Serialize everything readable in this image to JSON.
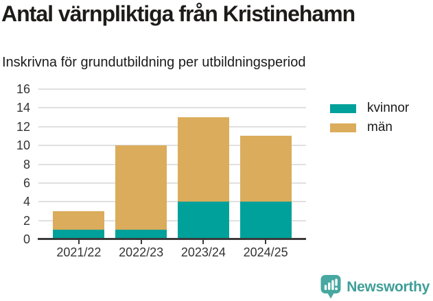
{
  "header": {
    "title": "Antal värnpliktiga från Kristinehamn",
    "subtitle": "Inskrivna för grundutbildning per utbildningsperiod"
  },
  "chart_data": {
    "type": "bar",
    "stacked": true,
    "title": "Antal värnpliktiga från Kristinehamn",
    "subtitle": "Inskrivna för grundutbildning per utbildningsperiod",
    "categories": [
      "2021/22",
      "2022/23",
      "2023/24",
      "2024/25"
    ],
    "series": [
      {
        "name": "kvinnor",
        "color": "#00a19a",
        "values": [
          1,
          1,
          4,
          4
        ]
      },
      {
        "name": "män",
        "color": "#dbac5b",
        "values": [
          2,
          9,
          9,
          7
        ]
      }
    ],
    "totals": [
      3,
      10,
      13,
      11
    ],
    "xlabel": "",
    "ylabel": "",
    "ylim": [
      0,
      16
    ],
    "ytick_step": 2,
    "yticks": [
      0,
      2,
      4,
      6,
      8,
      10,
      12,
      14,
      16
    ],
    "grid": "horizontal",
    "legend_position": "right",
    "colors": {
      "grid": "#e0e0e0",
      "axis": "#3a3a3a",
      "tick_text": "#333333"
    }
  },
  "footer": {
    "brand": "Newsworthy",
    "brand_color": "#3f9e98",
    "icon": "newsworthy-logo-icon",
    "icon_color": "#47a8a1"
  }
}
